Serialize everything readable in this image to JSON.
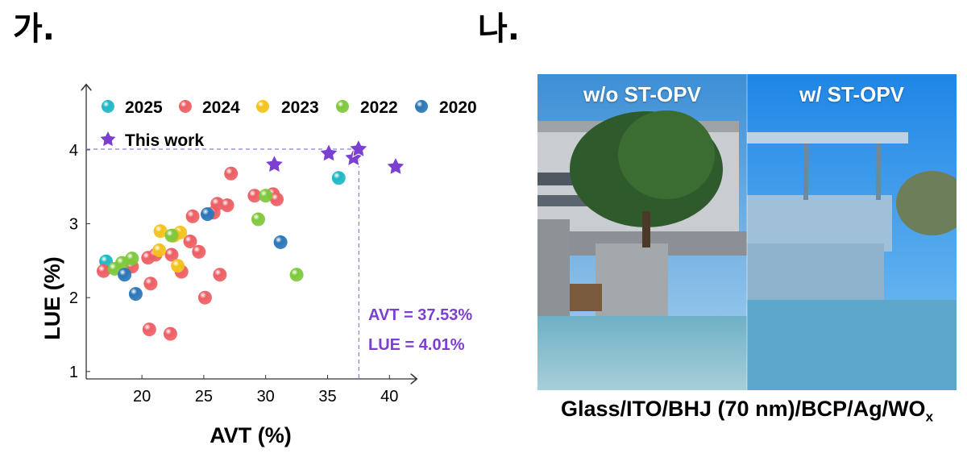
{
  "panel_a_label": "가.",
  "panel_b_label": "나.",
  "chart_data": {
    "type": "scatter",
    "xlabel": "AVT (%)",
    "ylabel": "LUE (%)",
    "xlim": [
      15.5,
      42.0
    ],
    "ylim": [
      0.9,
      4.85
    ],
    "xticks": [
      20,
      25,
      30,
      35,
      40
    ],
    "yticks": [
      1,
      2,
      3,
      4
    ],
    "legend": [
      "2025",
      "2024",
      "2023",
      "2022",
      "2020",
      "This work"
    ],
    "colors": {
      "2025": "#1fb7c6",
      "2024": "#ec5f64",
      "2023": "#f4c21c",
      "2022": "#7ec83c",
      "2020": "#2a76b8",
      "This work": "#7b3fd1"
    },
    "series": [
      {
        "name": "2025",
        "marker": "sphere",
        "points": [
          [
            17.1,
            2.49
          ],
          [
            35.9,
            3.62
          ]
        ]
      },
      {
        "name": "2024",
        "marker": "sphere",
        "points": [
          [
            16.9,
            2.36
          ],
          [
            19.2,
            2.42
          ],
          [
            20.5,
            2.54
          ],
          [
            21.1,
            2.58
          ],
          [
            20.6,
            1.57
          ],
          [
            20.7,
            2.19
          ],
          [
            22.4,
            2.58
          ],
          [
            22.3,
            1.51
          ],
          [
            23.2,
            2.35
          ],
          [
            23.9,
            2.76
          ],
          [
            24.1,
            3.1
          ],
          [
            24.6,
            2.62
          ],
          [
            25.1,
            2.0
          ],
          [
            25.8,
            3.15
          ],
          [
            26.1,
            3.27
          ],
          [
            26.3,
            2.31
          ],
          [
            26.9,
            3.25
          ],
          [
            27.2,
            3.68
          ],
          [
            29.1,
            3.38
          ],
          [
            30.6,
            3.4
          ],
          [
            30.9,
            3.33
          ]
        ]
      },
      {
        "name": "2023",
        "marker": "sphere",
        "points": [
          [
            21.4,
            2.64
          ],
          [
            21.5,
            2.9
          ],
          [
            22.9,
            2.43
          ],
          [
            23.1,
            2.88
          ],
          [
            22.6,
            2.84
          ]
        ]
      },
      {
        "name": "2022",
        "marker": "sphere",
        "points": [
          [
            17.8,
            2.39
          ],
          [
            18.4,
            2.47
          ],
          [
            19.2,
            2.53
          ],
          [
            22.4,
            2.84
          ],
          [
            29.4,
            3.06
          ],
          [
            30.0,
            3.38
          ],
          [
            32.5,
            2.31
          ]
        ]
      },
      {
        "name": "2020",
        "marker": "sphere",
        "points": [
          [
            18.6,
            2.31
          ],
          [
            19.5,
            2.05
          ],
          [
            25.3,
            3.13
          ],
          [
            31.2,
            2.75
          ]
        ]
      },
      {
        "name": "This work",
        "marker": "star",
        "points": [
          [
            30.7,
            3.8
          ],
          [
            35.1,
            3.95
          ],
          [
            37.1,
            3.89
          ],
          [
            37.5,
            4.01
          ],
          [
            40.5,
            3.77
          ]
        ]
      }
    ],
    "highlight": {
      "x": 37.53,
      "y": 4.01
    },
    "annotations": [
      "AVT = 37.53%",
      "LUE = 4.01%"
    ]
  },
  "photo": {
    "caption_left": "w/o ST-OPV",
    "caption_right": "w/ ST-OPV"
  },
  "structure_text": "Glass/ITO/BHJ (70 nm)/BCP/Ag/WO",
  "structure_sub": "x"
}
